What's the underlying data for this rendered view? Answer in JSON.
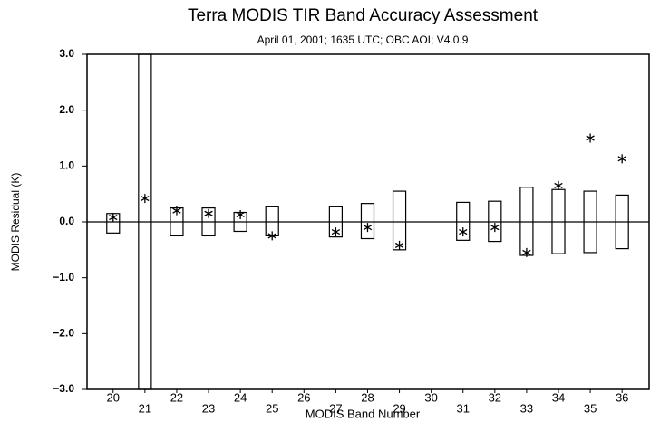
{
  "chart_data": {
    "type": "range",
    "title": "Terra MODIS TIR Band Accuracy Assessment",
    "subtitle": "April 01, 2001; 1635 UTC; OBC AOI; V4.0.9",
    "xlabel": "MODIS Band Number",
    "ylabel": "MODIS Residual (K)",
    "x": [
      20,
      21,
      22,
      23,
      24,
      25,
      26,
      27,
      28,
      29,
      30,
      31,
      32,
      33,
      34,
      35,
      36
    ],
    "low": [
      -0.2,
      -3.0,
      -0.25,
      -0.25,
      -0.17,
      -0.25,
      null,
      -0.27,
      -0.3,
      -0.5,
      null,
      -0.33,
      -0.35,
      -0.6,
      -0.57,
      -0.55,
      -0.48
    ],
    "high": [
      0.15,
      3.0,
      0.25,
      0.25,
      0.17,
      0.27,
      null,
      0.27,
      0.33,
      0.55,
      null,
      0.35,
      0.37,
      0.62,
      0.58,
      0.55,
      0.48
    ],
    "values": [
      0.08,
      0.42,
      0.2,
      0.15,
      0.13,
      -0.25,
      null,
      -0.18,
      -0.1,
      -0.42,
      null,
      -0.18,
      -0.1,
      -0.55,
      0.65,
      1.5,
      1.13
    ],
    "xlim": [
      19.18,
      36.85
    ],
    "xticks": [
      20,
      21,
      22,
      23,
      24,
      25,
      26,
      27,
      28,
      29,
      30,
      31,
      32,
      33,
      34,
      35,
      36
    ],
    "ylim": [
      -3,
      3
    ],
    "yticks": [
      {
        "value": -3,
        "label": "−3.0"
      },
      {
        "value": -2,
        "label": "−2.0"
      },
      {
        "value": -1,
        "label": "−1.0"
      },
      {
        "value": 0,
        "label": "0.0"
      },
      {
        "value": 1,
        "label": "1.0"
      },
      {
        "value": 2,
        "label": "2.0"
      },
      {
        "value": 3,
        "label": "3.0"
      }
    ],
    "zero_line": true,
    "color": "#000000"
  }
}
